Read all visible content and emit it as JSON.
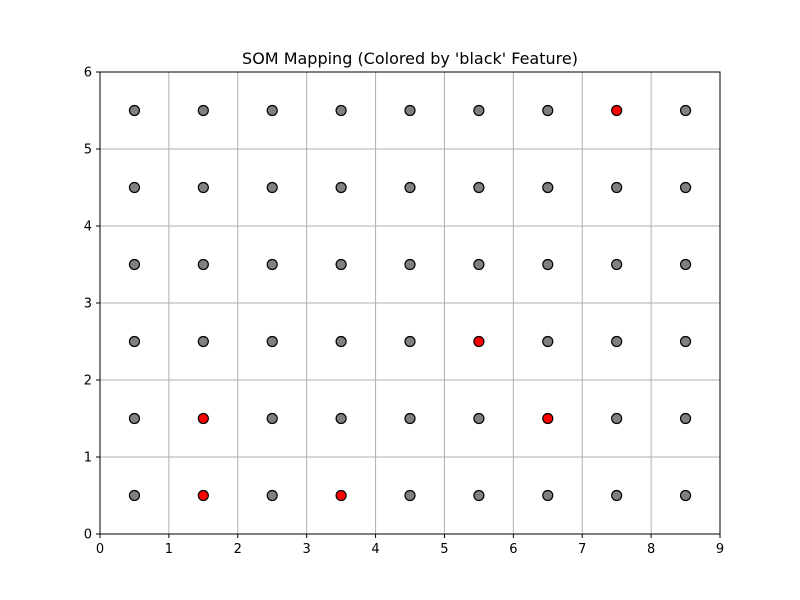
{
  "chart_data": {
    "type": "scatter",
    "title": "SOM Mapping (Colored by 'black' Feature)",
    "xlabel": "",
    "ylabel": "",
    "xlim": [
      0,
      9
    ],
    "ylim": [
      0,
      6
    ],
    "xticks": [
      "0",
      "1",
      "2",
      "3",
      "4",
      "5",
      "6",
      "7",
      "8",
      "9"
    ],
    "yticks": [
      "0",
      "1",
      "2",
      "3",
      "4",
      "5",
      "6"
    ],
    "grid": true,
    "colors": {
      "default": "#808080",
      "highlight": "#ff0000",
      "grid": "#b0b0b0"
    },
    "points": [
      {
        "x": 0.5,
        "y": 0.5,
        "color": "gray"
      },
      {
        "x": 1.5,
        "y": 0.5,
        "color": "red"
      },
      {
        "x": 2.5,
        "y": 0.5,
        "color": "gray"
      },
      {
        "x": 3.5,
        "y": 0.5,
        "color": "red"
      },
      {
        "x": 4.5,
        "y": 0.5,
        "color": "gray"
      },
      {
        "x": 5.5,
        "y": 0.5,
        "color": "gray"
      },
      {
        "x": 6.5,
        "y": 0.5,
        "color": "gray"
      },
      {
        "x": 7.5,
        "y": 0.5,
        "color": "gray"
      },
      {
        "x": 8.5,
        "y": 0.5,
        "color": "gray"
      },
      {
        "x": 0.5,
        "y": 1.5,
        "color": "gray"
      },
      {
        "x": 1.5,
        "y": 1.5,
        "color": "red"
      },
      {
        "x": 2.5,
        "y": 1.5,
        "color": "gray"
      },
      {
        "x": 3.5,
        "y": 1.5,
        "color": "gray"
      },
      {
        "x": 4.5,
        "y": 1.5,
        "color": "gray"
      },
      {
        "x": 5.5,
        "y": 1.5,
        "color": "gray"
      },
      {
        "x": 6.5,
        "y": 1.5,
        "color": "red"
      },
      {
        "x": 7.5,
        "y": 1.5,
        "color": "gray"
      },
      {
        "x": 8.5,
        "y": 1.5,
        "color": "gray"
      },
      {
        "x": 0.5,
        "y": 2.5,
        "color": "gray"
      },
      {
        "x": 1.5,
        "y": 2.5,
        "color": "gray"
      },
      {
        "x": 2.5,
        "y": 2.5,
        "color": "gray"
      },
      {
        "x": 3.5,
        "y": 2.5,
        "color": "gray"
      },
      {
        "x": 4.5,
        "y": 2.5,
        "color": "gray"
      },
      {
        "x": 5.5,
        "y": 2.5,
        "color": "red"
      },
      {
        "x": 6.5,
        "y": 2.5,
        "color": "gray"
      },
      {
        "x": 7.5,
        "y": 2.5,
        "color": "gray"
      },
      {
        "x": 8.5,
        "y": 2.5,
        "color": "gray"
      },
      {
        "x": 0.5,
        "y": 3.5,
        "color": "gray"
      },
      {
        "x": 1.5,
        "y": 3.5,
        "color": "gray"
      },
      {
        "x": 2.5,
        "y": 3.5,
        "color": "gray"
      },
      {
        "x": 3.5,
        "y": 3.5,
        "color": "gray"
      },
      {
        "x": 4.5,
        "y": 3.5,
        "color": "gray"
      },
      {
        "x": 5.5,
        "y": 3.5,
        "color": "gray"
      },
      {
        "x": 6.5,
        "y": 3.5,
        "color": "gray"
      },
      {
        "x": 7.5,
        "y": 3.5,
        "color": "gray"
      },
      {
        "x": 8.5,
        "y": 3.5,
        "color": "gray"
      },
      {
        "x": 0.5,
        "y": 4.5,
        "color": "gray"
      },
      {
        "x": 1.5,
        "y": 4.5,
        "color": "gray"
      },
      {
        "x": 2.5,
        "y": 4.5,
        "color": "gray"
      },
      {
        "x": 3.5,
        "y": 4.5,
        "color": "gray"
      },
      {
        "x": 4.5,
        "y": 4.5,
        "color": "gray"
      },
      {
        "x": 5.5,
        "y": 4.5,
        "color": "gray"
      },
      {
        "x": 6.5,
        "y": 4.5,
        "color": "gray"
      },
      {
        "x": 7.5,
        "y": 4.5,
        "color": "gray"
      },
      {
        "x": 8.5,
        "y": 4.5,
        "color": "gray"
      },
      {
        "x": 0.5,
        "y": 5.5,
        "color": "gray"
      },
      {
        "x": 1.5,
        "y": 5.5,
        "color": "gray"
      },
      {
        "x": 2.5,
        "y": 5.5,
        "color": "gray"
      },
      {
        "x": 3.5,
        "y": 5.5,
        "color": "gray"
      },
      {
        "x": 4.5,
        "y": 5.5,
        "color": "gray"
      },
      {
        "x": 5.5,
        "y": 5.5,
        "color": "gray"
      },
      {
        "x": 6.5,
        "y": 5.5,
        "color": "gray"
      },
      {
        "x": 7.5,
        "y": 5.5,
        "color": "red"
      },
      {
        "x": 8.5,
        "y": 5.5,
        "color": "gray"
      }
    ]
  }
}
